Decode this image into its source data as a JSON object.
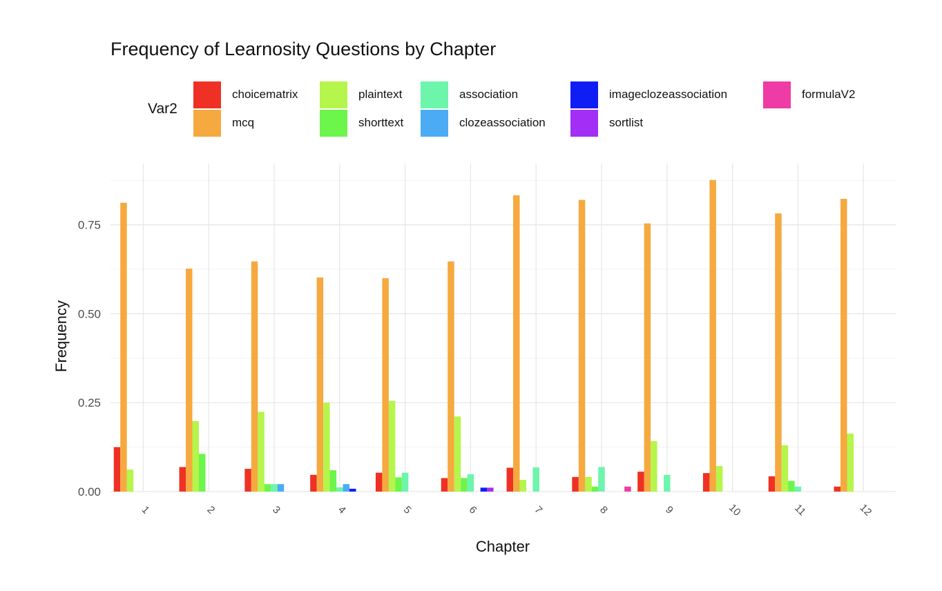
{
  "chart_data": {
    "type": "bar",
    "title": "Frequency of Learnosity Questions by Chapter",
    "xlabel": "Chapter",
    "ylabel": "Frequency",
    "ylim": [
      0,
      0.9
    ],
    "y_ticks": [
      "0.00",
      "0.25",
      "0.50",
      "0.75"
    ],
    "y_tick_values": [
      0,
      0.25,
      0.5,
      0.75
    ],
    "categories": [
      "1",
      "2",
      "3",
      "4",
      "5",
      "6",
      "7",
      "8",
      "9",
      "10",
      "11",
      "12"
    ],
    "legend_title": "Var2",
    "legend_position": "top",
    "grid": true,
    "series": [
      {
        "name": "choicematrix",
        "color": "#EE3124",
        "values": [
          0.125,
          0.069,
          0.064,
          0.047,
          0.053,
          0.038,
          0.067,
          0.041,
          0.056,
          0.052,
          0.043,
          0.014
        ]
      },
      {
        "name": "mcq",
        "color": "#F5A93F",
        "values": [
          0.812,
          0.627,
          0.647,
          0.602,
          0.6,
          0.647,
          0.833,
          0.82,
          0.754,
          0.876,
          0.782,
          0.823
        ]
      },
      {
        "name": "plaintext",
        "color": "#B6F54B",
        "values": [
          0.062,
          0.198,
          0.224,
          0.25,
          0.255,
          0.211,
          0.033,
          0.041,
          0.142,
          0.072,
          0.13,
          0.163
        ]
      },
      {
        "name": "shorttext",
        "color": "#6CF54B",
        "values": [
          0,
          0.106,
          0.021,
          0.06,
          0.04,
          0.038,
          0,
          0.014,
          0,
          0,
          0.03,
          0
        ]
      },
      {
        "name": "association",
        "color": "#6CF5AB",
        "values": [
          0,
          0,
          0.021,
          0.012,
          0.053,
          0.049,
          0.068,
          0.069,
          0.047,
          0,
          0.014,
          0
        ]
      },
      {
        "name": "clozeassociation",
        "color": "#4BABF5",
        "values": [
          0,
          0,
          0.021,
          0.021,
          0,
          0,
          0,
          0,
          0,
          0,
          0,
          0
        ]
      },
      {
        "name": "imageclozeassociation",
        "color": "#0F1EF5",
        "values": [
          0,
          0,
          0,
          0.008,
          0,
          0.011,
          0,
          0,
          0,
          0,
          0,
          0
        ]
      },
      {
        "name": "sortlist",
        "color": "#A32EF5",
        "values": [
          0,
          0,
          0,
          0,
          0,
          0.011,
          0,
          0,
          0,
          0,
          0,
          0
        ]
      },
      {
        "name": "formulaV2",
        "color": "#EE3BA5",
        "values": [
          0,
          0,
          0,
          0,
          0,
          0,
          0,
          0.014,
          0,
          0,
          0,
          0
        ]
      }
    ]
  }
}
